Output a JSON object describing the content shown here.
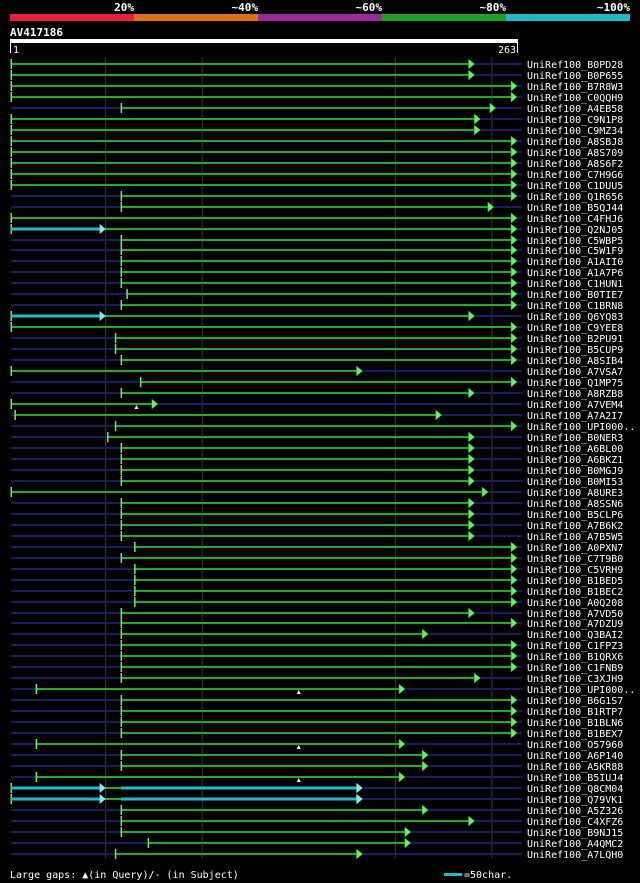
{
  "colors": {
    "background": "#000000",
    "hit": "#22aa22",
    "hit_light": "#6cee6c",
    "gap_region": "#1a1a66",
    "query_only": "#22bbcc",
    "text": "#ffffff",
    "legend_bar": [
      "#e8203a",
      "#e07018",
      "#9a2a9a",
      "#22a022",
      "#22b8c8"
    ]
  },
  "identity_legend": [
    "20%",
    "~40%",
    "~60%",
    "~80%",
    "~100%"
  ],
  "query": {
    "name": "AV417186",
    "start_label": "1",
    "end_label": "263"
  },
  "footer": {
    "gaps_text": "Large gaps: ▲(in Query)/- (in Subject)",
    "scale_text": "=50char."
  },
  "chart_data": {
    "type": "alignment",
    "x_range": [
      1,
      263
    ],
    "hits": [
      {
        "name": "UniRef100_B0PD28",
        "start": 1,
        "end": 241,
        "gaps": [],
        "query_segments": []
      },
      {
        "name": "UniRef100_B0P655",
        "start": 1,
        "end": 241,
        "gaps": [],
        "query_segments": []
      },
      {
        "name": "UniRef100_B7R8W3",
        "start": 1,
        "end": 263,
        "gaps": [],
        "query_segments": []
      },
      {
        "name": "UniRef100_C0QQH9",
        "start": 1,
        "end": 263,
        "gaps": [],
        "query_segments": []
      },
      {
        "name": "UniRef100_A4EB58",
        "start": 58,
        "end": 252,
        "gaps": [],
        "query_segments": []
      },
      {
        "name": "UniRef100_C9N1P8",
        "start": 1,
        "end": 244,
        "gaps": [],
        "query_segments": []
      },
      {
        "name": "UniRef100_C9MZ34",
        "start": 1,
        "end": 244,
        "gaps": [],
        "query_segments": []
      },
      {
        "name": "UniRef100_A8SBJ8",
        "start": 1,
        "end": 263,
        "gaps": [],
        "query_segments": []
      },
      {
        "name": "UniRef100_A8S709",
        "start": 1,
        "end": 263,
        "gaps": [],
        "query_segments": []
      },
      {
        "name": "UniRef100_A8S6F2",
        "start": 1,
        "end": 263,
        "gaps": [],
        "query_segments": []
      },
      {
        "name": "UniRef100_C7H9G6",
        "start": 1,
        "end": 263,
        "gaps": [],
        "query_segments": []
      },
      {
        "name": "UniRef100_C1DUU5",
        "start": 1,
        "end": 263,
        "gaps": [],
        "query_segments": []
      },
      {
        "name": "UniRef100_Q1R656",
        "start": 58,
        "end": 263,
        "gaps": [],
        "query_segments": []
      },
      {
        "name": "UniRef100_B5QJ44",
        "start": 58,
        "end": 251,
        "gaps": [],
        "query_segments": []
      },
      {
        "name": "UniRef100_C4FHJ6",
        "start": 1,
        "end": 263,
        "gaps": [],
        "query_segments": []
      },
      {
        "name": "UniRef100_Q2NJ05",
        "start": 1,
        "end": 263,
        "gaps": [],
        "query_segments": [
          [
            1,
            50
          ]
        ]
      },
      {
        "name": "UniRef100_C5WBP5",
        "start": 58,
        "end": 263,
        "gaps": [],
        "query_segments": []
      },
      {
        "name": "UniRef100_C5W1F9",
        "start": 58,
        "end": 263,
        "gaps": [],
        "query_segments": []
      },
      {
        "name": "UniRef100_A1AII0",
        "start": 58,
        "end": 263,
        "gaps": [],
        "query_segments": []
      },
      {
        "name": "UniRef100_A1A7P6",
        "start": 58,
        "end": 263,
        "gaps": [],
        "query_segments": []
      },
      {
        "name": "UniRef100_C1HUN1",
        "start": 58,
        "end": 263,
        "gaps": [],
        "query_segments": []
      },
      {
        "name": "UniRef100_B0TIE7",
        "start": 61,
        "end": 263,
        "gaps": [],
        "query_segments": []
      },
      {
        "name": "UniRef100_C1BRN8",
        "start": 58,
        "end": 263,
        "gaps": [],
        "query_segments": []
      },
      {
        "name": "UniRef100_Q6YQ83",
        "start": 1,
        "end": 241,
        "gaps": [],
        "query_segments": [
          [
            1,
            50
          ]
        ]
      },
      {
        "name": "UniRef100_C9YEE8",
        "start": 1,
        "end": 263,
        "gaps": [],
        "query_segments": []
      },
      {
        "name": "UniRef100_B2PU91",
        "start": 55,
        "end": 263,
        "gaps": [],
        "query_segments": []
      },
      {
        "name": "UniRef100_B5CUP9",
        "start": 55,
        "end": 263,
        "gaps": [],
        "query_segments": []
      },
      {
        "name": "UniRef100_A8SIB4",
        "start": 58,
        "end": 263,
        "gaps": [],
        "query_segments": []
      },
      {
        "name": "UniRef100_A7VSA7",
        "start": 1,
        "end": 183,
        "gaps": [],
        "query_segments": []
      },
      {
        "name": "UniRef100_Q1MP75",
        "start": 68,
        "end": 263,
        "gaps": [],
        "query_segments": []
      },
      {
        "name": "UniRef100_A8RZB8",
        "start": 58,
        "end": 241,
        "gaps": [],
        "query_segments": []
      },
      {
        "name": "UniRef100_A7VEM4",
        "start": 1,
        "end": 77,
        "gaps": [
          66
        ],
        "query_segments": []
      },
      {
        "name": "UniRef100_A7A2I7",
        "start": 3,
        "end": 224,
        "gaps": [],
        "query_segments": []
      },
      {
        "name": "UniRef100_UPI000..",
        "start": 55,
        "end": 263,
        "gaps": [],
        "query_segments": []
      },
      {
        "name": "UniRef100_B0NER3",
        "start": 51,
        "end": 241,
        "gaps": [],
        "query_segments": []
      },
      {
        "name": "UniRef100_A6BL00",
        "start": 58,
        "end": 241,
        "gaps": [],
        "query_segments": []
      },
      {
        "name": "UniRef100_A6BKZ1",
        "start": 58,
        "end": 241,
        "gaps": [],
        "query_segments": []
      },
      {
        "name": "UniRef100_B0MGJ9",
        "start": 58,
        "end": 241,
        "gaps": [],
        "query_segments": []
      },
      {
        "name": "UniRef100_B0MI53",
        "start": 58,
        "end": 241,
        "gaps": [],
        "query_segments": []
      },
      {
        "name": "UniRef100_A8URE3",
        "start": 1,
        "end": 248,
        "gaps": [],
        "query_segments": []
      },
      {
        "name": "UniRef100_A8SSN6",
        "start": 58,
        "end": 241,
        "gaps": [],
        "query_segments": []
      },
      {
        "name": "UniRef100_B5CLP6",
        "start": 58,
        "end": 241,
        "gaps": [],
        "query_segments": []
      },
      {
        "name": "UniRef100_A7B6K2",
        "start": 58,
        "end": 241,
        "gaps": [],
        "query_segments": []
      },
      {
        "name": "UniRef100_A7B5W5",
        "start": 58,
        "end": 241,
        "gaps": [],
        "query_segments": []
      },
      {
        "name": "UniRef100_A0PXN7",
        "start": 65,
        "end": 263,
        "gaps": [],
        "query_segments": []
      },
      {
        "name": "UniRef100_C7T9B0",
        "start": 58,
        "end": 263,
        "gaps": [],
        "query_segments": []
      },
      {
        "name": "UniRef100_C5VRH9",
        "start": 65,
        "end": 263,
        "gaps": [],
        "query_segments": []
      },
      {
        "name": "UniRef100_B1BED5",
        "start": 65,
        "end": 263,
        "gaps": [],
        "query_segments": []
      },
      {
        "name": "UniRef100_B1BEC2",
        "start": 65,
        "end": 263,
        "gaps": [],
        "query_segments": []
      },
      {
        "name": "UniRef100_A0Q208",
        "start": 65,
        "end": 263,
        "gaps": [],
        "query_segments": []
      },
      {
        "name": "UniRef100_A7VD50",
        "start": 58,
        "end": 241,
        "gaps": [],
        "query_segments": []
      },
      {
        "name": "UniRef100_A7DZU9",
        "start": 58,
        "end": 263,
        "gaps": [],
        "query_segments": []
      },
      {
        "name": "UniRef100_Q3BAI2",
        "start": 58,
        "end": 217,
        "gaps": [],
        "query_segments": []
      },
      {
        "name": "UniRef100_C1FPZ3",
        "start": 58,
        "end": 263,
        "gaps": [],
        "query_segments": []
      },
      {
        "name": "UniRef100_B1QRX6",
        "start": 58,
        "end": 263,
        "gaps": [],
        "query_segments": []
      },
      {
        "name": "UniRef100_C1FNB9",
        "start": 58,
        "end": 263,
        "gaps": [],
        "query_segments": []
      },
      {
        "name": "UniRef100_C3XJH9",
        "start": 58,
        "end": 244,
        "gaps": [],
        "query_segments": []
      },
      {
        "name": "UniRef100_UPI000..",
        "start": 14,
        "end": 205,
        "gaps": [
          150
        ],
        "query_segments": []
      },
      {
        "name": "UniRef100_B6G1S7",
        "start": 58,
        "end": 263,
        "gaps": [],
        "query_segments": []
      },
      {
        "name": "UniRef100_B1RTP7",
        "start": 58,
        "end": 263,
        "gaps": [],
        "query_segments": []
      },
      {
        "name": "UniRef100_B1BLN6",
        "start": 58,
        "end": 263,
        "gaps": [],
        "query_segments": []
      },
      {
        "name": "UniRef100_B1BEX7",
        "start": 58,
        "end": 263,
        "gaps": [],
        "query_segments": []
      },
      {
        "name": "UniRef100_O57960",
        "start": 14,
        "end": 205,
        "gaps": [
          150
        ],
        "query_segments": []
      },
      {
        "name": "UniRef100_A6P140",
        "start": 58,
        "end": 217,
        "gaps": [],
        "query_segments": []
      },
      {
        "name": "UniRef100_A5KR88",
        "start": 58,
        "end": 217,
        "gaps": [],
        "query_segments": []
      },
      {
        "name": "UniRef100_B5IUJ4",
        "start": 14,
        "end": 205,
        "gaps": [
          150
        ],
        "query_segments": []
      },
      {
        "name": "UniRef100_Q8CM04",
        "start": 1,
        "end": 183,
        "gaps": [],
        "query_segments": [
          [
            1,
            50
          ],
          [
            58,
            183
          ]
        ]
      },
      {
        "name": "UniRef100_Q79VK1",
        "start": 1,
        "end": 183,
        "gaps": [],
        "query_segments": [
          [
            1,
            50
          ],
          [
            58,
            183
          ]
        ]
      },
      {
        "name": "UniRef100_A5Z326",
        "start": 58,
        "end": 217,
        "gaps": [],
        "query_segments": []
      },
      {
        "name": "UniRef100_C4XFZ6",
        "start": 58,
        "end": 241,
        "gaps": [],
        "query_segments": []
      },
      {
        "name": "UniRef100_B9NJ15",
        "start": 58,
        "end": 208,
        "gaps": [],
        "query_segments": []
      },
      {
        "name": "UniRef100_A4QMC2",
        "start": 72,
        "end": 208,
        "gaps": [],
        "query_segments": []
      },
      {
        "name": "UniRef100_A7LQH0",
        "start": 55,
        "end": 183,
        "gaps": [],
        "query_segments": []
      }
    ]
  }
}
